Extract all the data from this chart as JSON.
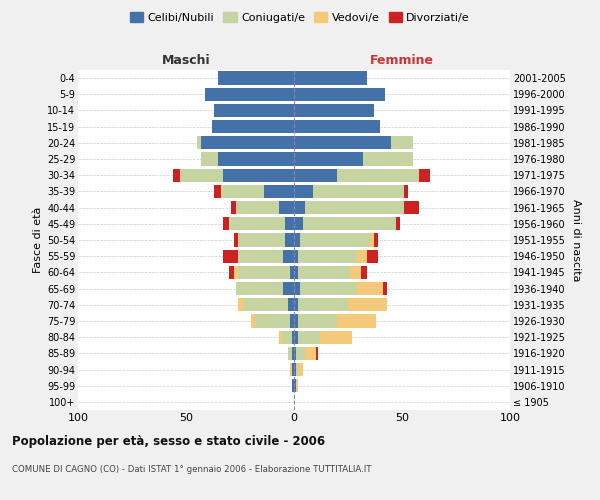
{
  "age_groups": [
    "100+",
    "95-99",
    "90-94",
    "85-89",
    "80-84",
    "75-79",
    "70-74",
    "65-69",
    "60-64",
    "55-59",
    "50-54",
    "45-49",
    "40-44",
    "35-39",
    "30-34",
    "25-29",
    "20-24",
    "15-19",
    "10-14",
    "5-9",
    "0-4"
  ],
  "birth_years": [
    "≤ 1905",
    "1906-1910",
    "1911-1915",
    "1916-1920",
    "1921-1925",
    "1926-1930",
    "1931-1935",
    "1936-1940",
    "1941-1945",
    "1946-1950",
    "1951-1955",
    "1956-1960",
    "1961-1965",
    "1966-1970",
    "1971-1975",
    "1976-1980",
    "1981-1985",
    "1986-1990",
    "1991-1995",
    "1996-2000",
    "2001-2005"
  ],
  "colors": {
    "celibi": "#4472a8",
    "coniugati": "#c5d4a0",
    "vedovi": "#f5c97a",
    "divorziati": "#cc2222"
  },
  "males": {
    "celibi": [
      0,
      1,
      1,
      1,
      1,
      2,
      3,
      5,
      2,
      5,
      4,
      4,
      7,
      14,
      33,
      35,
      43,
      38,
      37,
      41,
      35
    ],
    "coniugati": [
      0,
      0,
      0,
      2,
      4,
      16,
      20,
      22,
      24,
      21,
      22,
      26,
      20,
      20,
      20,
      8,
      2,
      0,
      0,
      0,
      0
    ],
    "vedovi": [
      0,
      0,
      1,
      0,
      2,
      2,
      3,
      0,
      2,
      0,
      0,
      0,
      0,
      0,
      0,
      0,
      0,
      0,
      0,
      0,
      0
    ],
    "divorziati": [
      0,
      0,
      0,
      0,
      0,
      0,
      0,
      0,
      2,
      7,
      2,
      3,
      2,
      3,
      3,
      0,
      0,
      0,
      0,
      0,
      0
    ]
  },
  "females": {
    "nubili": [
      0,
      1,
      1,
      1,
      2,
      2,
      2,
      3,
      2,
      2,
      3,
      4,
      5,
      9,
      20,
      32,
      45,
      40,
      37,
      42,
      34
    ],
    "coniugate": [
      0,
      0,
      1,
      4,
      10,
      18,
      23,
      26,
      24,
      27,
      32,
      43,
      46,
      42,
      38,
      23,
      10,
      0,
      0,
      0,
      0
    ],
    "vedove": [
      0,
      1,
      2,
      5,
      15,
      18,
      18,
      12,
      5,
      5,
      2,
      0,
      0,
      0,
      0,
      0,
      0,
      0,
      0,
      0,
      0
    ],
    "divorziate": [
      0,
      0,
      0,
      1,
      0,
      0,
      0,
      2,
      3,
      5,
      2,
      2,
      7,
      2,
      5,
      0,
      0,
      0,
      0,
      0,
      0
    ]
  },
  "title": "Popolazione per età, sesso e stato civile - 2006",
  "subtitle": "COMUNE DI CAGNO (CO) - Dati ISTAT 1° gennaio 2006 - Elaborazione TUTTITALIA.IT",
  "xlabel_left": "Maschi",
  "xlabel_right": "Femmine",
  "ylabel_left": "Fasce di età",
  "ylabel_right": "Anni di nascita",
  "xlim": 100,
  "legend_labels": [
    "Celibi/Nubili",
    "Coniugati/e",
    "Vedovi/e",
    "Divorziati/e"
  ],
  "bg_color": "#f0f0f0",
  "plot_bg": "#ffffff",
  "grid_color": "#cccccc"
}
